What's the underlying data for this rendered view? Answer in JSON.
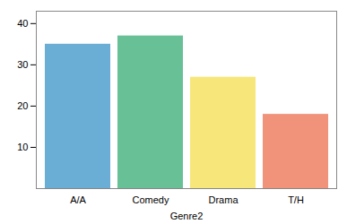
{
  "chart_data": {
    "type": "bar",
    "categories": [
      "A/A",
      "Comedy",
      "Drama",
      "T/H"
    ],
    "values": [
      35,
      37,
      27,
      18
    ],
    "colors": [
      "#6AAED6",
      "#68C097",
      "#F7E67A",
      "#F0937A"
    ],
    "xlabel": "Genre2",
    "ylim": [
      0,
      43
    ],
    "yticks": [
      10,
      20,
      30,
      40
    ],
    "grid": false
  }
}
